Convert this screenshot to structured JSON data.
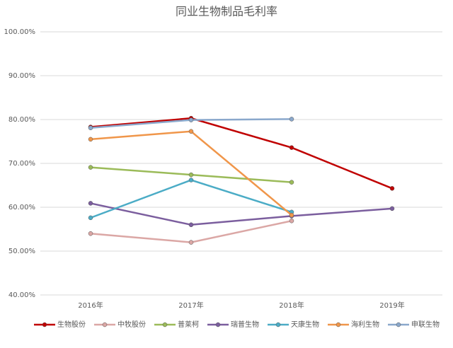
{
  "chart_data": {
    "type": "line",
    "title": "同业生物制品毛利率",
    "categories": [
      "2016年",
      "2017年",
      "2018年",
      "2019年"
    ],
    "series": [
      {
        "name": "生物股份",
        "color": "#c00000",
        "values": [
          78.3,
          80.3,
          73.6,
          64.3
        ]
      },
      {
        "name": "中牧股份",
        "color": "#dba7a5",
        "values": [
          54.0,
          52.0,
          56.9,
          null
        ]
      },
      {
        "name": "普莱柯",
        "color": "#9bbb59",
        "values": [
          69.1,
          67.4,
          65.7,
          null
        ]
      },
      {
        "name": "瑞普生物",
        "color": "#7b5e9e",
        "values": [
          60.9,
          56.0,
          58.0,
          59.7
        ]
      },
      {
        "name": "天康生物",
        "color": "#4bacc6",
        "values": [
          57.6,
          66.2,
          58.9,
          null
        ]
      },
      {
        "name": "海利生物",
        "color": "#f0964a",
        "values": [
          75.5,
          77.3,
          58.2,
          null
        ]
      },
      {
        "name": "申联生物",
        "color": "#8aa8cc",
        "values": [
          78.1,
          79.9,
          80.1,
          null
        ]
      }
    ],
    "ylim": [
      40,
      100
    ],
    "yticks": [
      {
        "value": 40,
        "label": "40.00%"
      },
      {
        "value": 50,
        "label": "50.00%"
      },
      {
        "value": 60,
        "label": "60.00%"
      },
      {
        "value": 70,
        "label": "70.00%"
      },
      {
        "value": 80,
        "label": "80.00%"
      },
      {
        "value": 90,
        "label": "90.00%"
      },
      {
        "value": 100,
        "label": "100.00%"
      }
    ],
    "grid": true
  }
}
